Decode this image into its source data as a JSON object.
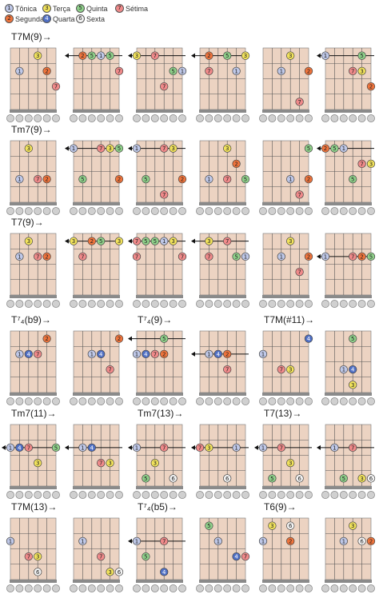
{
  "legend": [
    {
      "num": "1",
      "label": "Tônica",
      "color": "#bfc8e8"
    },
    {
      "num": "3",
      "label": "Terça",
      "color": "#f2e35c"
    },
    {
      "num": "5",
      "label": "Quinta",
      "color": "#8fd18a"
    },
    {
      "num": "7",
      "label": "Sétima",
      "color": "#f08a8a"
    },
    {
      "num": "2",
      "label": "Segunda",
      "color": "#f0743c"
    },
    {
      "num": "4",
      "label": "Quarta",
      "color": "#4f6fc4"
    },
    {
      "num": "6",
      "label": "Sexta",
      "color": "#f4f4f4"
    }
  ],
  "colors": {
    "fretboard": "#ecd3c2",
    "nut": "#8a8a8a",
    "string_circle": "#d0d0d0",
    "1": "#bfc8e8",
    "2": "#f0743c",
    "3": "#f2e35c",
    "4": "#4f6fc4",
    "5": "#8fd18a",
    "6": "#f4f4f4",
    "7": "#f08a8a"
  },
  "rows": [
    {
      "labels": [
        {
          "col": 0,
          "text": "T7M(9)→"
        }
      ],
      "diagrams": [
        {
          "notes": [
            [
              1,
              2,
              "1"
            ],
            [
              3,
              1,
              "3"
            ],
            [
              4,
              2,
              "2"
            ],
            [
              5,
              3,
              "7"
            ]
          ]
        },
        {
          "barre": true,
          "notes": [
            [
              1,
              1,
              "2"
            ],
            [
              2,
              1,
              "5"
            ],
            [
              3,
              1,
              "1"
            ],
            [
              4,
              1,
              "5"
            ],
            [
              5,
              2,
              "7"
            ]
          ]
        },
        {
          "barre": true,
          "notes": [
            [
              0,
              1,
              "3"
            ],
            [
              2,
              1,
              "7"
            ],
            [
              4,
              2,
              "5"
            ],
            [
              5,
              2,
              "1"
            ],
            [
              3,
              3,
              "7"
            ]
          ]
        },
        {
          "barre": true,
          "notes": [
            [
              1,
              1,
              "2"
            ],
            [
              3,
              1,
              "5"
            ],
            [
              5,
              1,
              "3"
            ],
            [
              1,
              2,
              "7"
            ],
            [
              4,
              2,
              "1"
            ]
          ]
        },
        {
          "notes": [
            [
              3,
              1,
              "3"
            ],
            [
              2,
              2,
              "1"
            ],
            [
              5,
              2,
              "2"
            ],
            [
              4,
              4,
              "7"
            ]
          ]
        },
        {
          "barre": true,
          "notes": [
            [
              0,
              1,
              "1"
            ],
            [
              4,
              1,
              "5"
            ],
            [
              3,
              2,
              "7"
            ],
            [
              4,
              2,
              "3"
            ],
            [
              5,
              3,
              "2"
            ]
          ]
        }
      ]
    },
    {
      "labels": [
        {
          "col": 0,
          "text": "Tm7(9)→"
        }
      ],
      "diagrams": [
        {
          "notes": [
            [
              2,
              1,
              "3"
            ],
            [
              1,
              3,
              "1"
            ],
            [
              3,
              3,
              "7"
            ],
            [
              4,
              3,
              "2"
            ]
          ]
        },
        {
          "barre": true,
          "notes": [
            [
              0,
              1,
              "1"
            ],
            [
              3,
              1,
              "7"
            ],
            [
              4,
              1,
              "3"
            ],
            [
              5,
              1,
              "5"
            ],
            [
              1,
              3,
              "5"
            ],
            [
              5,
              3,
              "2"
            ]
          ]
        },
        {
          "barre": true,
          "notes": [
            [
              0,
              1,
              "1"
            ],
            [
              3,
              1,
              "7"
            ],
            [
              4,
              1,
              "3"
            ],
            [
              1,
              3,
              "5"
            ],
            [
              3,
              4,
              "7"
            ],
            [
              5,
              3,
              "2"
            ]
          ]
        },
        {
          "notes": [
            [
              3,
              1,
              "3"
            ],
            [
              4,
              2,
              "2"
            ],
            [
              1,
              3,
              "1"
            ],
            [
              3,
              3,
              "7"
            ],
            [
              5,
              3,
              "5"
            ]
          ]
        },
        {
          "notes": [
            [
              5,
              1,
              "5"
            ],
            [
              3,
              3,
              "1"
            ],
            [
              5,
              3,
              "2"
            ],
            [
              4,
              4,
              "7"
            ]
          ]
        },
        {
          "barre": true,
          "notes": [
            [
              0,
              1,
              "2"
            ],
            [
              1,
              1,
              "5"
            ],
            [
              2,
              1,
              "1"
            ],
            [
              4,
              2,
              "7"
            ],
            [
              5,
              2,
              "3"
            ],
            [
              3,
              3,
              "5"
            ]
          ]
        }
      ]
    },
    {
      "labels": [
        {
          "col": 0,
          "text": "T7(9)→"
        }
      ],
      "diagrams": [
        {
          "notes": [
            [
              2,
              1,
              "3"
            ],
            [
              1,
              2,
              "1"
            ],
            [
              3,
              2,
              "7"
            ],
            [
              4,
              2,
              "2"
            ]
          ]
        },
        {
          "barre": true,
          "notes": [
            [
              0,
              1,
              "3"
            ],
            [
              2,
              1,
              "2"
            ],
            [
              3,
              1,
              "5"
            ],
            [
              5,
              1,
              "3"
            ],
            [
              1,
              2,
              "7"
            ]
          ]
        },
        {
          "barre": true,
          "notes": [
            [
              0,
              1,
              "7"
            ],
            [
              1,
              1,
              "5"
            ],
            [
              2,
              1,
              "5"
            ],
            [
              3,
              1,
              "1"
            ],
            [
              4,
              1,
              "3"
            ],
            [
              0,
              2,
              "7"
            ],
            [
              5,
              2,
              "7"
            ]
          ]
        },
        {
          "barre": true,
          "notes": [
            [
              1,
              1,
              "3"
            ],
            [
              3,
              1,
              "7"
            ],
            [
              1,
              2,
              "7"
            ],
            [
              4,
              2,
              "5"
            ],
            [
              5,
              2,
              "1"
            ]
          ]
        },
        {
          "notes": [
            [
              3,
              1,
              "3"
            ],
            [
              2,
              2,
              "1"
            ],
            [
              5,
              2,
              "2"
            ],
            [
              4,
              3,
              "7"
            ]
          ]
        },
        {
          "barre": true,
          "notes": [
            [
              0,
              2,
              "1"
            ],
            [
              3,
              2,
              "7"
            ],
            [
              4,
              2,
              "2"
            ],
            [
              5,
              2,
              "5"
            ]
          ]
        }
      ]
    },
    {
      "labels": [
        {
          "col": 0,
          "text": "T⁷₄(b9)→"
        },
        {
          "col": 2,
          "text": "T⁷₄(9)→"
        },
        {
          "col": 4,
          "text": "T7M(#11)→"
        }
      ],
      "diagrams": [
        {
          "notes": [
            [
              4,
              1,
              "2"
            ],
            [
              1,
              2,
              "1"
            ],
            [
              2,
              2,
              "4"
            ],
            [
              3,
              2,
              "7"
            ]
          ]
        },
        {
          "notes": [
            [
              5,
              1,
              "2"
            ],
            [
              2,
              2,
              "1"
            ],
            [
              3,
              2,
              "4"
            ],
            [
              4,
              3,
              "7"
            ]
          ]
        },
        {
          "barre": true,
          "notes": [
            [
              0,
              2,
              "1"
            ],
            [
              1,
              2,
              "4"
            ],
            [
              2,
              2,
              "7"
            ],
            [
              3,
              2,
              "2"
            ],
            [
              3,
              1,
              "5"
            ]
          ]
        },
        {
          "barre": true,
          "notes": [
            [
              1,
              2,
              "1"
            ],
            [
              2,
              2,
              "4"
            ],
            [
              3,
              2,
              "2"
            ],
            [
              3,
              3,
              "7"
            ]
          ]
        },
        {
          "notes": [
            [
              0,
              2,
              "1"
            ],
            [
              2,
              3,
              "7"
            ],
            [
              3,
              3,
              "3"
            ],
            [
              5,
              1,
              "4"
            ]
          ]
        },
        {
          "notes": [
            [
              3,
              1,
              "5"
            ],
            [
              2,
              3,
              "1"
            ],
            [
              3,
              3,
              "4"
            ],
            [
              3,
              4,
              "3"
            ]
          ]
        }
      ]
    },
    {
      "labels": [
        {
          "col": 0,
          "text": "Tm7(11)→"
        },
        {
          "col": 2,
          "text": "Tm7(13)→"
        },
        {
          "col": 4,
          "text": "T7(13)→"
        }
      ],
      "diagrams": [
        {
          "barre": true,
          "notes": [
            [
              0,
              2,
              "1"
            ],
            [
              1,
              2,
              "4"
            ],
            [
              2,
              2,
              "7"
            ],
            [
              5,
              2,
              "5"
            ],
            [
              3,
              3,
              "3"
            ]
          ]
        },
        {
          "barre": true,
          "notes": [
            [
              1,
              2,
              "1"
            ],
            [
              2,
              2,
              "4"
            ],
            [
              3,
              3,
              "7"
            ],
            [
              4,
              3,
              "3"
            ]
          ]
        },
        {
          "barre": true,
          "notes": [
            [
              0,
              2,
              "1"
            ],
            [
              3,
              2,
              "7"
            ],
            [
              2,
              3,
              "3"
            ],
            [
              1,
              4,
              "5"
            ],
            [
              4,
              4,
              "6"
            ]
          ]
        },
        {
          "barre": true,
          "notes": [
            [
              0,
              2,
              "7"
            ],
            [
              1,
              2,
              "3"
            ],
            [
              4,
              2,
              "1"
            ],
            [
              3,
              4,
              "6"
            ]
          ]
        },
        {
          "barre": true,
          "notes": [
            [
              0,
              2,
              "1"
            ],
            [
              2,
              2,
              "7"
            ],
            [
              3,
              3,
              "3"
            ],
            [
              1,
              4,
              "5"
            ],
            [
              4,
              4,
              "6"
            ]
          ]
        },
        {
          "barre": true,
          "notes": [
            [
              1,
              2,
              "1"
            ],
            [
              3,
              2,
              "7"
            ],
            [
              2,
              4,
              "5"
            ],
            [
              4,
              4,
              "3"
            ],
            [
              5,
              4,
              "6"
            ]
          ]
        }
      ]
    },
    {
      "labels": [
        {
          "col": 0,
          "text": "T7M(13)→"
        },
        {
          "col": 2,
          "text": "T⁷₄(b5)→"
        },
        {
          "col": 4,
          "text": "T6(9)→"
        }
      ],
      "diagrams": [
        {
          "notes": [
            [
              0,
              2,
              "1"
            ],
            [
              2,
              3,
              "7"
            ],
            [
              3,
              3,
              "3"
            ],
            [
              3,
              4,
              "6"
            ]
          ]
        },
        {
          "notes": [
            [
              1,
              2,
              "1"
            ],
            [
              3,
              3,
              "7"
            ],
            [
              4,
              4,
              "3"
            ],
            [
              5,
              4,
              "6"
            ]
          ]
        },
        {
          "barre": true,
          "notes": [
            [
              0,
              2,
              "1"
            ],
            [
              3,
              2,
              "7"
            ],
            [
              1,
              3,
              "5"
            ],
            [
              3,
              4,
              "4"
            ]
          ]
        },
        {
          "notes": [
            [
              1,
              1,
              "5"
            ],
            [
              2,
              2,
              "1"
            ],
            [
              4,
              3,
              "4"
            ],
            [
              5,
              3,
              "7"
            ]
          ]
        },
        {
          "notes": [
            [
              1,
              1,
              "3"
            ],
            [
              3,
              1,
              "6"
            ],
            [
              0,
              2,
              "1"
            ],
            [
              3,
              2,
              "2"
            ]
          ]
        },
        {
          "notes": [
            [
              3,
              1,
              "3"
            ],
            [
              2,
              2,
              "1"
            ],
            [
              4,
              2,
              "6"
            ],
            [
              5,
              2,
              "2"
            ]
          ]
        }
      ]
    }
  ]
}
